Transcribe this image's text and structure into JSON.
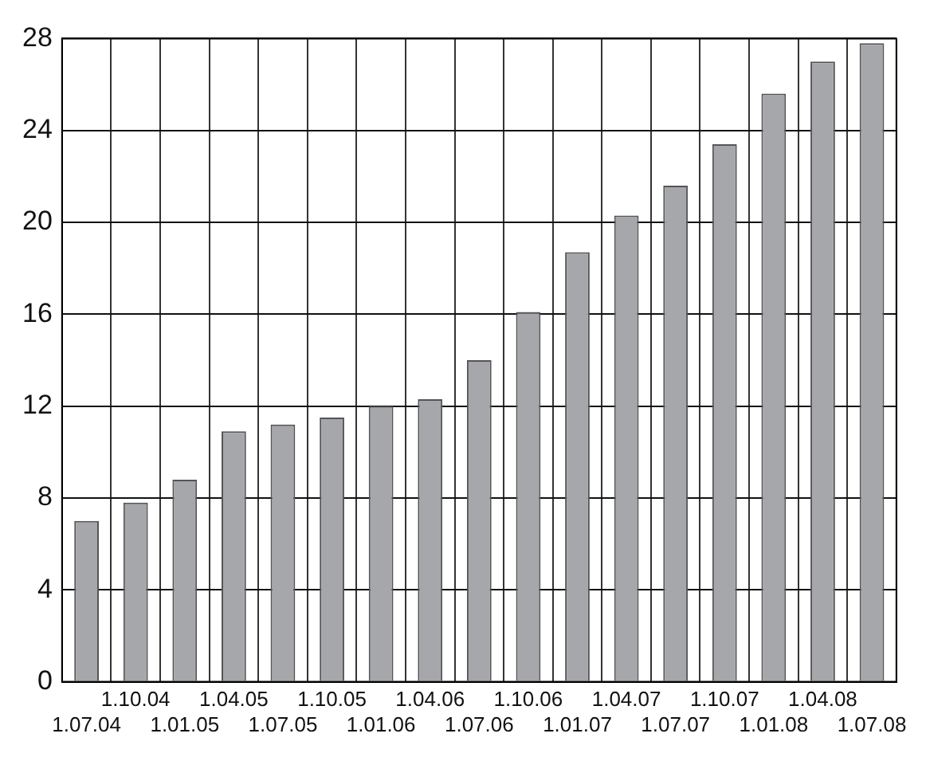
{
  "chart_data": {
    "type": "bar",
    "categories": [
      "1.07.04",
      "1.10.04",
      "1.01.05",
      "1.04.05",
      "1.07.05",
      "1.10.05",
      "1.01.06",
      "1.04.06",
      "1.07.06",
      "1.10.06",
      "1.01.07",
      "1.04.07",
      "1.07.07",
      "1.10.07",
      "1.01.08",
      "1.04.08",
      "1.07.08"
    ],
    "values": [
      7.0,
      7.8,
      8.8,
      10.9,
      11.2,
      11.5,
      12.0,
      12.3,
      14.0,
      16.1,
      18.7,
      20.3,
      21.6,
      23.4,
      25.6,
      27.0,
      27.8
    ],
    "color": "#a6a7ab",
    "ylim": [
      0,
      28
    ],
    "yticks": [
      0,
      4,
      8,
      12,
      16,
      20,
      24,
      28
    ],
    "grid": true,
    "legend": false
  }
}
